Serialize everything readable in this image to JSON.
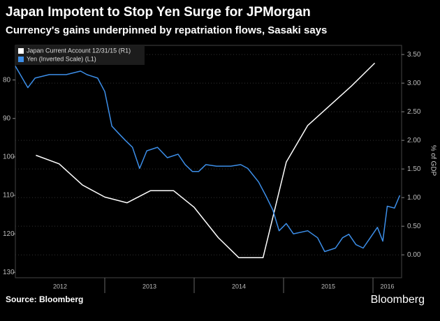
{
  "chart_data": {
    "type": "line",
    "title": "Japan Impotent to Stop Yen Surge for JPMorgan",
    "subtitle": "Currency's gains underpinned by repatriation flows, Sasaki says",
    "y2_label": "% of GDP",
    "source": "Source: Bloomberg",
    "brand": "Bloomberg",
    "xlim": [
      2012,
      2016.32
    ],
    "xticks": [
      2012,
      2013,
      2014,
      2015,
      2016
    ],
    "ylim": [
      71,
      131.4
    ],
    "y_inverted": true,
    "yticks": [
      80,
      90,
      100,
      110,
      120,
      130
    ],
    "y2lim": [
      -0.4,
      3.66
    ],
    "y2ticks": [
      {
        "value": 0,
        "label": "0.00"
      },
      {
        "value": 0.5,
        "label": "0.50"
      },
      {
        "value": 1,
        "label": "1.00"
      },
      {
        "value": 1.5,
        "label": "1.50"
      },
      {
        "value": 2,
        "label": "2.00"
      },
      {
        "value": 2.5,
        "label": "2.50"
      },
      {
        "value": 3,
        "label": "3.00"
      },
      {
        "value": 3.5,
        "label": "3.50"
      }
    ],
    "legend_position": "upper left",
    "series": [
      {
        "name": "Japan Current Account 12/31/15 (R1)",
        "color": "#ffffff",
        "axis": "y2",
        "x": [
          2012.23,
          2012.49,
          2012.75,
          2013.0,
          2013.25,
          2013.51,
          2013.77,
          2014.0,
          2014.27,
          2014.5,
          2014.77,
          2015.03,
          2015.27,
          2015.76,
          2016.02
        ],
        "values": [
          1.74,
          1.59,
          1.22,
          1.01,
          0.91,
          1.12,
          1.12,
          0.83,
          0.3,
          -0.05,
          -0.05,
          1.62,
          2.26,
          2.95,
          3.35
        ]
      },
      {
        "name": "Yen (Inverted Scale) (L1)",
        "color": "#3c8ee8",
        "axis": "y",
        "x": [
          2012.0,
          2012.14,
          2012.22,
          2012.38,
          2012.57,
          2012.73,
          2012.8,
          2012.92,
          2013.0,
          2013.08,
          2013.16,
          2013.23,
          2013.31,
          2013.39,
          2013.47,
          2013.59,
          2013.7,
          2013.82,
          2013.9,
          2013.98,
          2014.05,
          2014.13,
          2014.25,
          2014.41,
          2014.52,
          2014.6,
          2014.72,
          2014.8,
          2014.88,
          2014.95,
          2015.03,
          2015.11,
          2015.27,
          2015.38,
          2015.46,
          2015.58,
          2015.66,
          2015.73,
          2015.81,
          2015.89,
          2015.97,
          2016.05,
          2016.11,
          2016.16,
          2016.24,
          2016.3
        ],
        "values": [
          76.4,
          82,
          79.5,
          78.6,
          78.6,
          77.7,
          78.6,
          79.5,
          83,
          92,
          94,
          95.7,
          97.5,
          103,
          98.4,
          97.5,
          100.2,
          99.3,
          102,
          103.8,
          103.8,
          102,
          102.4,
          102.4,
          102,
          103,
          106.5,
          110,
          113.8,
          119.2,
          117.3,
          120,
          119.2,
          121,
          124.6,
          123.7,
          121,
          120.1,
          122.8,
          123.7,
          121,
          118.3,
          121.9,
          112.8,
          113.3,
          110
        ]
      }
    ]
  }
}
